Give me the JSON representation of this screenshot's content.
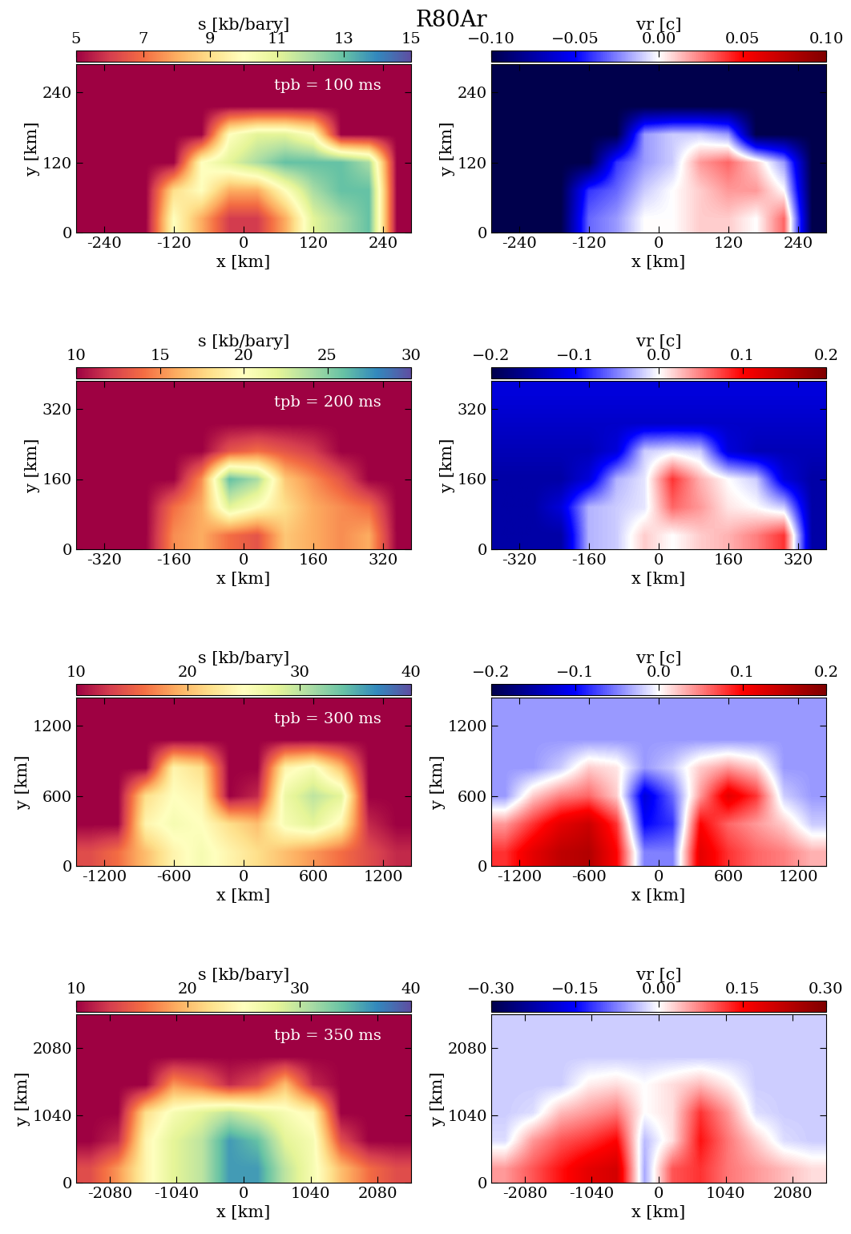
{
  "suptitle": "R80Ar",
  "chart_data": [
    {
      "type": "heatmap",
      "xlabel": "x [km]",
      "ylabel": "y [km]",
      "colorbar_label": "s [kb/bary]",
      "annotation": "tpb = 100 ms",
      "color": "Spectral",
      "xlim": [
        -288,
        288
      ],
      "ylim": [
        0,
        288
      ],
      "xticks": [
        -240,
        -120,
        0,
        120,
        240
      ],
      "yticks": [
        0,
        120,
        240
      ],
      "colorbar_range": [
        5,
        15
      ],
      "colorbar_ticks": [
        5,
        7,
        9,
        11,
        13,
        15
      ],
      "cells": [
        [
          5,
          5,
          5,
          10,
          8,
          6,
          6,
          8,
          11,
          12,
          13,
          5
        ],
        [
          5,
          5,
          5,
          9,
          10,
          8,
          8,
          10,
          12,
          13,
          13,
          5
        ],
        [
          5,
          5,
          5,
          5,
          10,
          11,
          12,
          13,
          13,
          13,
          12,
          5
        ],
        [
          5,
          5,
          5,
          5,
          5,
          10,
          11,
          11,
          10,
          5,
          5,
          5
        ],
        [
          5,
          5,
          5,
          5,
          5,
          5,
          5,
          5,
          5,
          5,
          5,
          5
        ],
        [
          5,
          5,
          5,
          5,
          5,
          5,
          5,
          5,
          5,
          5,
          5,
          5
        ]
      ]
    },
    {
      "type": "heatmap",
      "xlabel": "x [km]",
      "ylabel": "y [km]",
      "colorbar_label": "vr [c]",
      "color": "seismic",
      "xlim": [
        -288,
        288
      ],
      "ylim": [
        0,
        288
      ],
      "xticks": [
        -240,
        -120,
        0,
        120,
        240
      ],
      "yticks": [
        0,
        120,
        240
      ],
      "colorbar_range": [
        -0.1,
        0.1
      ],
      "colorbar_ticks": [
        {
          "value": -0.1,
          "label": "−0.10"
        },
        {
          "value": -0.05,
          "label": "−0.05"
        },
        {
          "value": 0,
          "label": "0.00"
        },
        {
          "value": 0.05,
          "label": "0.05"
        },
        {
          "value": 0.1,
          "label": "0.10"
        }
      ],
      "cells": [
        [
          -0.1,
          -0.1,
          -0.1,
          -0.03,
          -0.02,
          0.0,
          0.0,
          0.01,
          0.01,
          0.0,
          0.03,
          -0.1
        ],
        [
          -0.1,
          -0.1,
          -0.1,
          -0.04,
          -0.03,
          -0.01,
          0.0,
          0.01,
          0.02,
          0.02,
          0.0,
          -0.1
        ],
        [
          -0.1,
          -0.1,
          -0.1,
          -0.1,
          -0.04,
          -0.02,
          -0.01,
          0.02,
          0.03,
          0.01,
          -0.02,
          -0.1
        ],
        [
          -0.1,
          -0.1,
          -0.1,
          -0.1,
          -0.1,
          -0.02,
          -0.01,
          -0.01,
          -0.02,
          -0.1,
          -0.1,
          -0.1
        ],
        [
          -0.1,
          -0.1,
          -0.1,
          -0.1,
          -0.1,
          -0.1,
          -0.1,
          -0.1,
          -0.1,
          -0.1,
          -0.1,
          -0.1
        ],
        [
          -0.1,
          -0.1,
          -0.1,
          -0.1,
          -0.1,
          -0.1,
          -0.1,
          -0.1,
          -0.1,
          -0.1,
          -0.1,
          -0.1
        ]
      ]
    },
    {
      "type": "heatmap",
      "xlabel": "x [km]",
      "ylabel": "y [km]",
      "colorbar_label": "s [kb/bary]",
      "annotation": "tpb = 200 ms",
      "color": "Spectral",
      "xlim": [
        -384,
        384
      ],
      "ylim": [
        0,
        384
      ],
      "xticks": [
        -320,
        -160,
        0,
        160,
        320
      ],
      "yticks": [
        0,
        160,
        320
      ],
      "colorbar_range": [
        10,
        30
      ],
      "colorbar_ticks": [
        10,
        15,
        20,
        25,
        30
      ],
      "cells": [
        [
          10,
          10,
          10,
          15,
          16,
          14,
          13,
          17,
          16,
          15,
          16,
          10
        ],
        [
          10,
          10,
          10,
          14,
          16,
          22,
          20,
          18,
          16,
          15,
          14,
          10
        ],
        [
          10,
          10,
          10,
          10,
          15,
          26,
          24,
          17,
          15,
          13,
          10,
          10
        ],
        [
          10,
          10,
          10,
          10,
          10,
          13,
          14,
          13,
          12,
          10,
          10,
          10
        ],
        [
          10,
          10,
          10,
          10,
          10,
          10,
          10,
          10,
          10,
          10,
          10,
          10
        ],
        [
          10,
          10,
          10,
          10,
          10,
          10,
          10,
          10,
          10,
          10,
          10,
          10
        ]
      ]
    },
    {
      "type": "heatmap",
      "xlabel": "x [km]",
      "ylabel": "y [km]",
      "colorbar_label": "vr [c]",
      "color": "seismic",
      "xlim": [
        -384,
        384
      ],
      "ylim": [
        0,
        384
      ],
      "xticks": [
        -320,
        -160,
        0,
        160,
        320
      ],
      "yticks": [
        0,
        160,
        320
      ],
      "colorbar_range": [
        -0.2,
        0.2
      ],
      "colorbar_ticks": [
        {
          "value": -0.2,
          "label": "−0.2"
        },
        {
          "value": -0.1,
          "label": "−0.1"
        },
        {
          "value": 0,
          "label": "0.0"
        },
        {
          "value": 0.1,
          "label": "0.1"
        },
        {
          "value": 0.2,
          "label": "0.2"
        }
      ],
      "cells": [
        [
          -0.15,
          -0.15,
          -0.15,
          -0.03,
          -0.02,
          0.02,
          0.0,
          0.02,
          0.03,
          0.05,
          0.08,
          -0.15
        ],
        [
          -0.15,
          -0.15,
          -0.12,
          -0.03,
          -0.02,
          -0.01,
          0.06,
          0.04,
          0.01,
          0.0,
          -0.02,
          -0.15
        ],
        [
          -0.15,
          -0.15,
          -0.15,
          -0.12,
          -0.03,
          -0.01,
          0.08,
          0.03,
          0.0,
          -0.02,
          -0.12,
          -0.15
        ],
        [
          -0.14,
          -0.14,
          -0.14,
          -0.14,
          -0.12,
          -0.02,
          -0.01,
          -0.02,
          -0.12,
          -0.14,
          -0.14,
          -0.14
        ],
        [
          -0.13,
          -0.13,
          -0.13,
          -0.13,
          -0.13,
          -0.13,
          -0.13,
          -0.13,
          -0.13,
          -0.13,
          -0.13,
          -0.13
        ],
        [
          -0.12,
          -0.12,
          -0.12,
          -0.12,
          -0.12,
          -0.12,
          -0.12,
          -0.12,
          -0.12,
          -0.12,
          -0.12,
          -0.12
        ]
      ]
    },
    {
      "type": "heatmap",
      "xlabel": "x [km]",
      "ylabel": "y [km]",
      "colorbar_label": "s [kb/bary]",
      "annotation": "tpb = 300 ms",
      "color": "Spectral",
      "xlim": [
        -1440,
        1440
      ],
      "ylim": [
        0,
        1440
      ],
      "xticks": [
        -1200,
        -600,
        0,
        600,
        1200
      ],
      "yticks": [
        0,
        600,
        1200
      ],
      "colorbar_range": [
        10,
        40
      ],
      "colorbar_ticks": [
        10,
        20,
        30,
        40
      ],
      "cells": [
        [
          14,
          16,
          20,
          24,
          26,
          24,
          22,
          20,
          18,
          16,
          14,
          12
        ],
        [
          10,
          10,
          24,
          26,
          25,
          22,
          20,
          26,
          28,
          24,
          12,
          10
        ],
        [
          10,
          10,
          22,
          25,
          24,
          10,
          12,
          27,
          30,
          28,
          10,
          10
        ],
        [
          10,
          10,
          10,
          24,
          22,
          10,
          10,
          24,
          26,
          20,
          10,
          10
        ],
        [
          10,
          10,
          10,
          10,
          10,
          10,
          10,
          10,
          10,
          10,
          10,
          10
        ],
        [
          10,
          10,
          10,
          10,
          10,
          10,
          10,
          10,
          10,
          10,
          10,
          10
        ]
      ]
    },
    {
      "type": "heatmap",
      "xlabel": "x [km]",
      "ylabel": "y [km]",
      "colorbar_label": "vr [c]",
      "color": "seismic",
      "xlim": [
        -1440,
        1440
      ],
      "ylim": [
        0,
        1440
      ],
      "xticks": [
        -1200,
        -600,
        0,
        600,
        1200
      ],
      "yticks": [
        0,
        600,
        1200
      ],
      "colorbar_range": [
        -0.2,
        0.2
      ],
      "colorbar_ticks": [
        {
          "value": -0.2,
          "label": "−0.2"
        },
        {
          "value": -0.1,
          "label": "−0.1"
        },
        {
          "value": 0,
          "label": "0.0"
        },
        {
          "value": 0.1,
          "label": "0.1"
        },
        {
          "value": 0.2,
          "label": "0.2"
        }
      ],
      "cells": [
        [
          0.08,
          0.12,
          0.15,
          0.16,
          0.1,
          -0.05,
          -0.05,
          0.12,
          0.08,
          0.06,
          0.05,
          0.03
        ],
        [
          0.04,
          0.08,
          0.12,
          0.14,
          0.08,
          -0.1,
          -0.08,
          0.1,
          0.06,
          0.04,
          0.02,
          -0.02
        ],
        [
          -0.04,
          0.02,
          0.05,
          0.06,
          0.02,
          -0.12,
          -0.06,
          0.04,
          0.12,
          0.08,
          -0.02,
          -0.04
        ],
        [
          -0.04,
          -0.04,
          -0.02,
          0.02,
          0.01,
          -0.04,
          -0.02,
          0.02,
          0.04,
          0.02,
          -0.04,
          -0.04
        ],
        [
          -0.04,
          -0.04,
          -0.04,
          -0.04,
          -0.04,
          -0.04,
          -0.04,
          -0.04,
          -0.04,
          -0.04,
          -0.04,
          -0.04
        ],
        [
          -0.04,
          -0.04,
          -0.04,
          -0.04,
          -0.04,
          -0.04,
          -0.04,
          -0.04,
          -0.04,
          -0.04,
          -0.04,
          -0.04
        ]
      ]
    },
    {
      "type": "heatmap",
      "xlabel": "x [km]",
      "ylabel": "y [km]",
      "colorbar_label": "s [kb/bary]",
      "annotation": "tpb = 350 ms",
      "color": "Spectral",
      "xlim": [
        -2600,
        2600
      ],
      "ylim": [
        0,
        2600
      ],
      "xticks": [
        -2080,
        -1040,
        0,
        1040,
        2080
      ],
      "yticks": [
        0,
        1040,
        2080
      ],
      "colorbar_range": [
        10,
        40
      ],
      "colorbar_ticks": [
        10,
        20,
        30,
        40
      ],
      "cells": [
        [
          14,
          18,
          24,
          28,
          30,
          36,
          36,
          30,
          26,
          20,
          16,
          14
        ],
        [
          10,
          12,
          24,
          28,
          30,
          36,
          34,
          28,
          26,
          14,
          10,
          10
        ],
        [
          10,
          10,
          22,
          26,
          28,
          30,
          28,
          26,
          24,
          10,
          10,
          10
        ],
        [
          10,
          10,
          10,
          18,
          16,
          12,
          14,
          20,
          12,
          10,
          10,
          10
        ],
        [
          10,
          10,
          10,
          10,
          10,
          10,
          10,
          10,
          10,
          10,
          10,
          10
        ],
        [
          10,
          10,
          10,
          10,
          10,
          10,
          10,
          10,
          10,
          10,
          10,
          10
        ]
      ]
    },
    {
      "type": "heatmap",
      "xlabel": "x [km]",
      "ylabel": "y [km]",
      "colorbar_label": "vr [c]",
      "color": "seismic",
      "xlim": [
        -2600,
        2600
      ],
      "ylim": [
        0,
        2600
      ],
      "xticks": [
        -2080,
        -1040,
        0,
        1040,
        2080
      ],
      "yticks": [
        0,
        1040,
        2080
      ],
      "colorbar_range": [
        -0.3,
        0.3
      ],
      "colorbar_ticks": [
        {
          "value": -0.3,
          "label": "−0.30"
        },
        {
          "value": -0.15,
          "label": "−0.15"
        },
        {
          "value": 0,
          "label": "0.00"
        },
        {
          "value": 0.15,
          "label": "0.15"
        },
        {
          "value": 0.3,
          "label": "0.30"
        }
      ],
      "cells": [
        [
          0.06,
          0.1,
          0.14,
          0.18,
          0.2,
          -0.05,
          0.1,
          0.12,
          0.08,
          0.06,
          0.04,
          0.02
        ],
        [
          -0.02,
          0.06,
          0.1,
          0.12,
          0.15,
          -0.04,
          0.02,
          0.14,
          0.08,
          0.03,
          -0.02,
          -0.03
        ],
        [
          -0.03,
          -0.02,
          0.04,
          0.06,
          0.08,
          0.0,
          0.02,
          0.12,
          0.06,
          -0.02,
          -0.03,
          -0.03
        ],
        [
          -0.03,
          -0.03,
          -0.03,
          0.01,
          0.02,
          0.0,
          0.02,
          0.04,
          0.01,
          -0.03,
          -0.03,
          -0.03
        ],
        [
          -0.03,
          -0.03,
          -0.03,
          -0.03,
          -0.03,
          -0.03,
          -0.03,
          -0.03,
          -0.03,
          -0.03,
          -0.03,
          -0.03
        ],
        [
          -0.03,
          -0.03,
          -0.03,
          -0.03,
          -0.03,
          -0.03,
          -0.03,
          -0.03,
          -0.03,
          -0.03,
          -0.03,
          -0.03
        ]
      ]
    }
  ]
}
